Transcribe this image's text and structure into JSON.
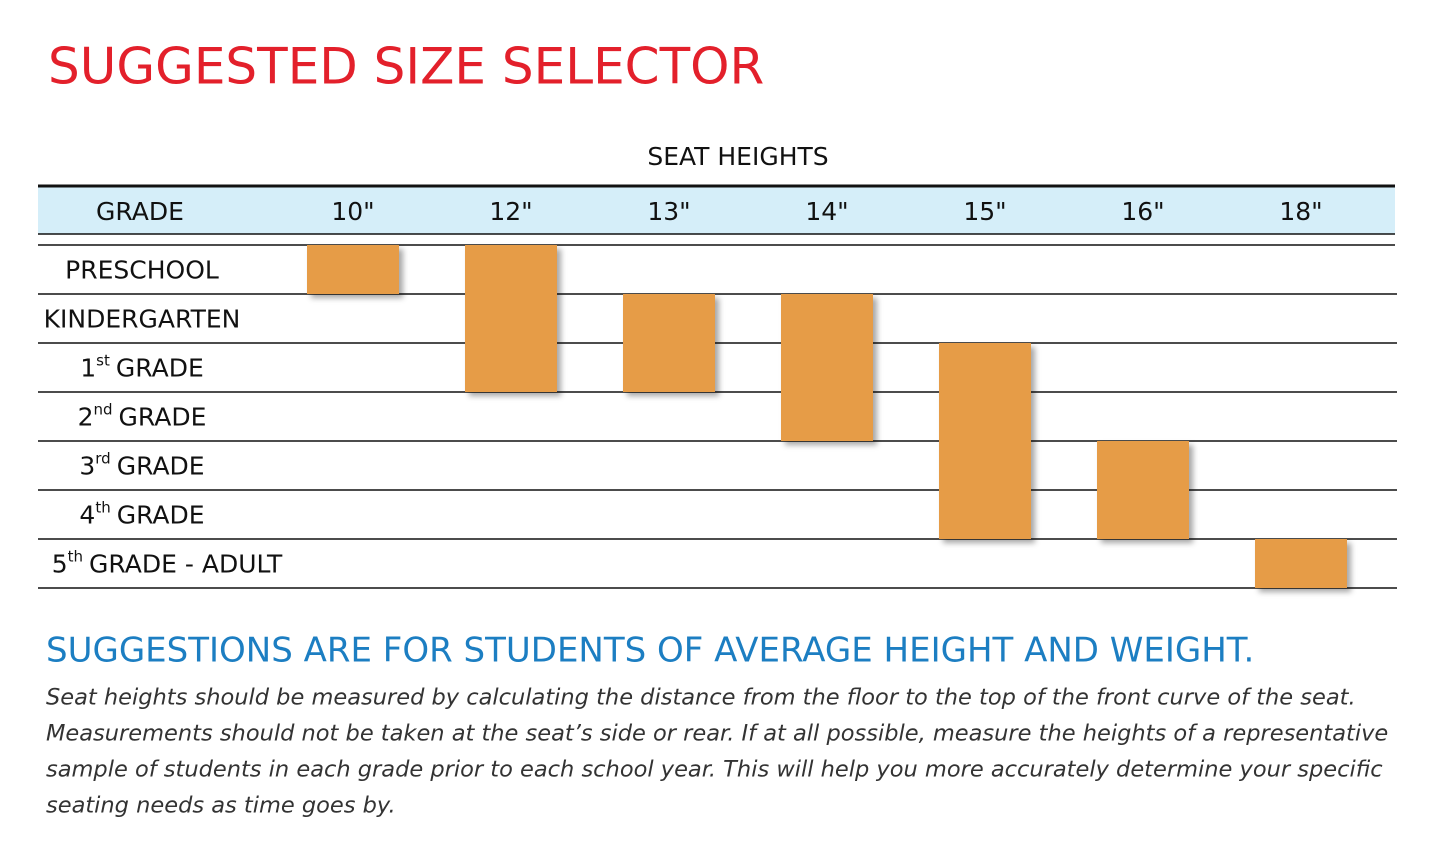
{
  "title": "SUGGESTED SIZE SELECTOR",
  "table": {
    "caption": "SEAT HEIGHTS",
    "row_header": "GRADE",
    "columns": [
      "10\"",
      "12\"",
      "13\"",
      "14\"",
      "15\"",
      "16\"",
      "18\""
    ],
    "bar_color": "#e69c47",
    "rows": [
      {
        "label": {
          "text": "PRESCHOOL"
        },
        "fit": [
          true,
          true,
          false,
          false,
          false,
          false,
          false
        ]
      },
      {
        "label": {
          "text": "KINDERGARTEN"
        },
        "fit": [
          false,
          true,
          true,
          true,
          false,
          false,
          false
        ]
      },
      {
        "label": {
          "number": "1",
          "suffix": "st",
          "text": "GRADE"
        },
        "fit": [
          false,
          true,
          true,
          true,
          true,
          false,
          false
        ]
      },
      {
        "label": {
          "number": "2",
          "suffix": "nd",
          "text": "GRADE"
        },
        "fit": [
          false,
          false,
          false,
          true,
          true,
          false,
          false
        ]
      },
      {
        "label": {
          "number": "3",
          "suffix": "rd",
          "text": "GRADE"
        },
        "fit": [
          false,
          false,
          false,
          false,
          true,
          true,
          false
        ]
      },
      {
        "label": {
          "number": "4",
          "suffix": "th",
          "text": "GRADE"
        },
        "fit": [
          false,
          false,
          false,
          false,
          true,
          true,
          false
        ]
      },
      {
        "label": {
          "number": "5",
          "suffix": "th",
          "text": "GRADE - ADULT"
        },
        "fit": [
          false,
          false,
          false,
          false,
          false,
          false,
          true
        ]
      }
    ]
  },
  "note": {
    "heading": "SUGGESTIONS ARE FOR STUDENTS OF AVERAGE HEIGHT AND WEIGHT.",
    "lines": [
      "Seat heights should be measured by calculating the distance from the floor to the top of the front curve of the seat.",
      "Measurements should not be taken at the seat’s side or rear.  If at all possible, measure the heights of a representative",
      "sample of students in each grade prior to each school year.  This will help you more accurately determine your specific",
      "seating needs as time goes by."
    ]
  }
}
